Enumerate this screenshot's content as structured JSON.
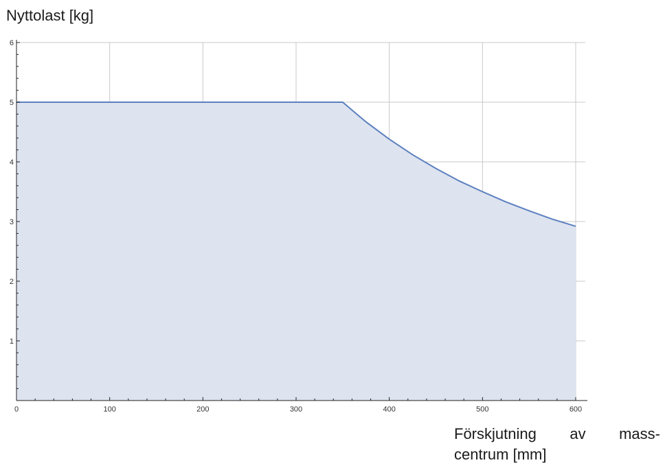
{
  "chart_data": {
    "type": "area",
    "title": "",
    "ylabel": "Nyttolast [kg]",
    "xlabel_line1": "Förskjutning av mass-",
    "xlabel_line2": "centrum [mm]",
    "xlim": [
      0,
      600
    ],
    "ylim": [
      0,
      6
    ],
    "x_ticks": [
      0,
      100,
      200,
      300,
      400,
      500,
      600
    ],
    "y_ticks": [
      1,
      2,
      3,
      4,
      5,
      6
    ],
    "grid": true,
    "colors": {
      "line": "#5b7fbf",
      "fill": "#dde3ef",
      "grid": "#c8c8c8",
      "axis": "#222222"
    },
    "series": [
      {
        "x": [
          0,
          350,
          375,
          400,
          425,
          450,
          475,
          500,
          525,
          550,
          575,
          600
        ],
        "y": [
          5,
          5,
          4.67,
          4.38,
          4.12,
          3.89,
          3.68,
          3.5,
          3.33,
          3.18,
          3.04,
          2.92
        ]
      }
    ]
  }
}
